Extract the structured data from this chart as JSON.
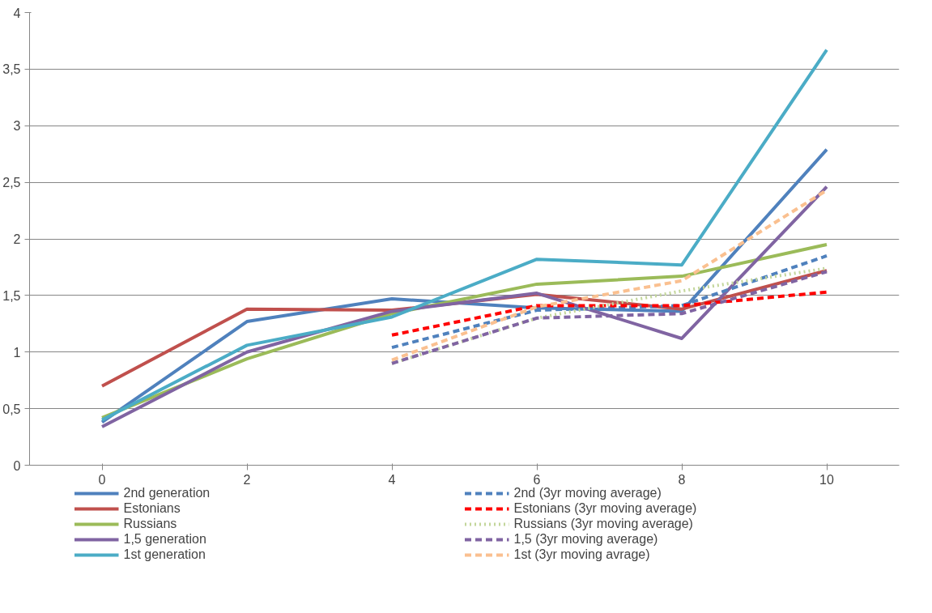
{
  "chart_data": {
    "type": "line",
    "categories": [
      "0",
      "2",
      "4",
      "6",
      "8",
      "10"
    ],
    "ylim": [
      0,
      4
    ],
    "yticks": [
      0,
      {
        "value": 0.5,
        "label": "0,5"
      },
      1,
      {
        "value": 1.5,
        "label": "1,5"
      },
      2,
      {
        "value": 2.5,
        "label": "2,5"
      },
      3,
      {
        "value": 3.5,
        "label": "3,5"
      },
      4
    ],
    "grid": "y",
    "legend": "bottom",
    "marker": "none",
    "series": [
      {
        "name": "2nd generation",
        "color": "#4f81bd",
        "line_style": "solid",
        "values": [
          0.38,
          1.27,
          1.47,
          1.39,
          1.36,
          2.79
        ]
      },
      {
        "name": "Estonians",
        "color": "#c0504d",
        "line_style": "solid",
        "values": [
          0.7,
          1.38,
          1.37,
          1.51,
          1.38,
          1.72
        ]
      },
      {
        "name": "Russians",
        "color": "#9bbb59",
        "line_style": "solid",
        "values": [
          0.42,
          0.94,
          1.34,
          1.6,
          1.67,
          1.95
        ]
      },
      {
        "name": "1,5 generation",
        "color": "#8064a2",
        "line_style": "solid",
        "values": [
          0.34,
          1.0,
          1.36,
          1.52,
          1.12,
          2.46
        ]
      },
      {
        "name": "1st generation",
        "color": "#4bacc6",
        "line_style": "solid",
        "values": [
          0.4,
          1.06,
          1.31,
          1.82,
          1.77,
          3.67
        ]
      },
      {
        "name": "2nd (3yr moving average)",
        "color": "#4f81bd",
        "line_style": "dashed",
        "values": [
          null,
          null,
          1.04,
          1.37,
          1.41,
          1.85
        ]
      },
      {
        "name": "Estonians (3yr moving average)",
        "color": "#ff0000",
        "line_style": "dashed",
        "values": [
          null,
          null,
          1.15,
          1.41,
          1.41,
          1.53
        ]
      },
      {
        "name": "Russians (3yr moving average)",
        "color": "#c3d69b",
        "line_style": "dotted",
        "values": [
          null,
          null,
          0.9,
          1.3,
          1.54,
          1.74
        ]
      },
      {
        "name": "1,5 (3yr moving average)",
        "color": "#8064a2",
        "line_style": "dashed",
        "values": [
          null,
          null,
          0.9,
          1.3,
          1.34,
          1.71
        ]
      },
      {
        "name": "1st (3yr moving avrage)",
        "color": "#fac090",
        "line_style": "dashed",
        "values": [
          null,
          null,
          0.93,
          1.4,
          1.63,
          2.43
        ]
      }
    ]
  }
}
